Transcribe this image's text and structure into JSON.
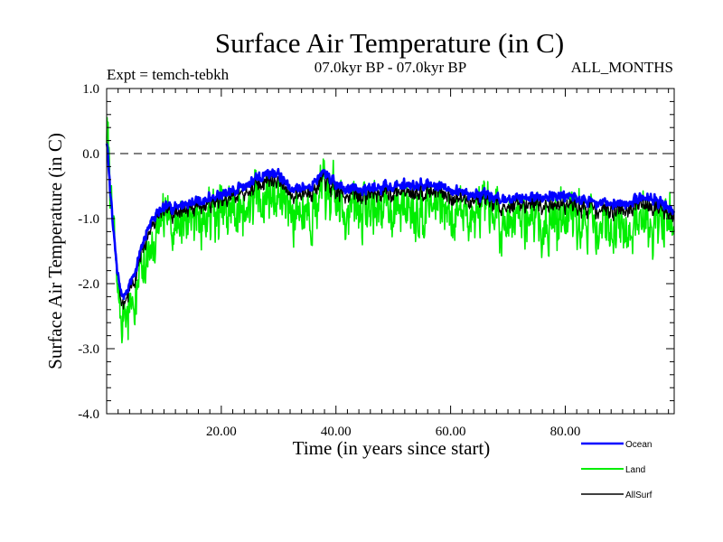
{
  "chart_data": {
    "type": "line",
    "title": "Surface Air Temperature (in C)",
    "subtitle_left": "Expt = temch-tebkh",
    "subtitle_center": "07.0kyr BP - 07.0kyr BP",
    "subtitle_right": "ALL_MONTHS",
    "xlabel": "Time (in years since start)",
    "ylabel": "Surface Air Temperature (in C)",
    "xlim": [
      0,
      99
    ],
    "ylim": [
      -4.0,
      1.0
    ],
    "xticks": [
      20,
      40,
      60,
      80
    ],
    "xtick_labels": [
      "20.00",
      "40.00",
      "60.00",
      "80.00"
    ],
    "yticks": [
      1.0,
      0.0,
      -1.0,
      -2.0,
      -3.0,
      -4.0
    ],
    "ytick_labels": [
      "1.0",
      "0.0",
      "-1.0",
      "-2.0",
      "-3.0",
      "-4.0"
    ],
    "reference_line": 0.0,
    "legend_placement": "bottom-right, outside plot",
    "series": [
      {
        "name": "Ocean",
        "color": "#0000ff",
        "x": [
          0,
          0.5,
          1,
          1.5,
          2,
          2.5,
          3,
          3.5,
          4,
          5,
          6,
          7,
          8,
          9,
          10,
          12,
          15,
          20,
          25,
          28,
          30,
          32,
          35,
          38,
          40,
          45,
          50,
          55,
          60,
          65,
          70,
          75,
          80,
          85,
          90,
          95,
          98,
          99
        ],
        "values": [
          0.2,
          -0.4,
          -1.0,
          -1.5,
          -1.9,
          -2.1,
          -2.2,
          -2.1,
          -2.0,
          -1.8,
          -1.5,
          -1.2,
          -1.0,
          -0.9,
          -0.85,
          -0.8,
          -0.75,
          -0.65,
          -0.45,
          -0.3,
          -0.3,
          -0.55,
          -0.5,
          -0.3,
          -0.5,
          -0.55,
          -0.5,
          -0.45,
          -0.55,
          -0.65,
          -0.7,
          -0.65,
          -0.65,
          -0.75,
          -0.75,
          -0.65,
          -0.85,
          -0.9
        ],
        "noise": 0.12
      },
      {
        "name": "Land",
        "color": "#00ee00",
        "x": [
          0,
          0.5,
          1,
          1.5,
          2,
          2.5,
          3,
          3.5,
          4,
          5,
          6,
          7,
          8,
          9,
          10,
          12,
          15,
          20,
          25,
          28,
          30,
          32,
          35,
          38,
          40,
          45,
          50,
          55,
          60,
          65,
          70,
          75,
          80,
          85,
          90,
          95,
          98,
          99
        ],
        "values": [
          0.4,
          -0.3,
          -1.0,
          -1.6,
          -2.1,
          -2.4,
          -2.6,
          -2.5,
          -2.4,
          -2.2,
          -1.9,
          -1.6,
          -1.4,
          -1.2,
          -1.1,
          -1.05,
          -1.0,
          -0.95,
          -0.8,
          -0.6,
          -0.65,
          -0.9,
          -0.85,
          -0.6,
          -0.8,
          -0.85,
          -0.8,
          -0.75,
          -0.85,
          -0.95,
          -1.0,
          -0.95,
          -1.0,
          -1.05,
          -1.1,
          -0.95,
          -1.15,
          -1.2
        ],
        "noise": 0.65
      },
      {
        "name": "AllSurf",
        "color": "#000000",
        "x": [
          0,
          0.5,
          1,
          1.5,
          2,
          2.5,
          3,
          3.5,
          4,
          5,
          6,
          7,
          8,
          9,
          10,
          12,
          15,
          20,
          25,
          28,
          30,
          32,
          35,
          38,
          40,
          45,
          50,
          55,
          60,
          65,
          70,
          75,
          80,
          85,
          90,
          95,
          98,
          99
        ],
        "values": [
          0.25,
          -0.4,
          -1.0,
          -1.55,
          -1.95,
          -2.2,
          -2.3,
          -2.2,
          -2.1,
          -1.9,
          -1.6,
          -1.3,
          -1.1,
          -0.95,
          -0.9,
          -0.88,
          -0.82,
          -0.75,
          -0.55,
          -0.4,
          -0.4,
          -0.65,
          -0.6,
          -0.4,
          -0.6,
          -0.65,
          -0.6,
          -0.55,
          -0.65,
          -0.75,
          -0.8,
          -0.75,
          -0.78,
          -0.85,
          -0.85,
          -0.75,
          -0.95,
          -1.0
        ],
        "noise": 0.2
      }
    ]
  }
}
